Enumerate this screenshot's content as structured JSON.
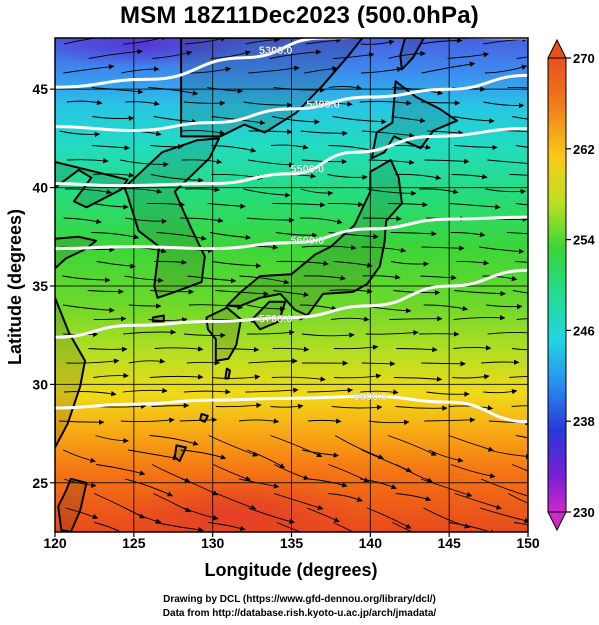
{
  "title": "MSM 18Z11Dec2023 (500.0hPa)",
  "map": {
    "xlabel": "Longitude (degrees)",
    "ylabel": "Latitude  (degrees)",
    "lon_range": [
      120,
      150
    ],
    "lat_range": [
      22.5,
      47.6
    ],
    "lon_ticks": [
      "120",
      "125",
      "130",
      "135",
      "140",
      "145",
      "150"
    ],
    "lat_ticks": [
      "25",
      "30",
      "35",
      "40",
      "45"
    ],
    "lon_tick_values": [
      120,
      125,
      130,
      135,
      140,
      145,
      150
    ],
    "lat_tick_values": [
      25,
      30,
      35,
      40,
      45
    ]
  },
  "colorbar": {
    "min": 230,
    "max": 270,
    "labels": [
      "270",
      "262",
      "254",
      "246",
      "238",
      "230"
    ],
    "label_values": [
      270,
      262,
      254,
      246,
      238,
      230
    ]
  },
  "contours": [
    {
      "label": "5300.0",
      "points": [
        [
          120,
          45.1
        ],
        [
          126,
          45.5
        ],
        [
          132,
          46.6
        ],
        [
          137,
          47.6
        ],
        [
          142,
          47.7
        ],
        [
          150,
          47.6
        ]
      ]
    },
    {
      "label": "5400.0",
      "points": [
        [
          120,
          43.1
        ],
        [
          125,
          42.9
        ],
        [
          130,
          43.3
        ],
        [
          135,
          44.0
        ],
        [
          140,
          44.6
        ],
        [
          145,
          45.0
        ],
        [
          150,
          45.7
        ]
      ]
    },
    {
      "label": "5500.0",
      "points": [
        [
          120,
          40.2
        ],
        [
          124,
          40.1
        ],
        [
          130,
          40.2
        ],
        [
          135,
          40.7
        ],
        [
          139,
          41.8
        ],
        [
          144,
          42.6
        ],
        [
          150,
          43.0
        ]
      ]
    },
    {
      "label": "5600.0",
      "points": [
        [
          120,
          36.9
        ],
        [
          125,
          37.0
        ],
        [
          130,
          36.9
        ],
        [
          135,
          37.2
        ],
        [
          140,
          37.9
        ],
        [
          145,
          38.4
        ],
        [
          150,
          38.5
        ]
      ]
    },
    {
      "label": "5700.0",
      "points": [
        [
          120,
          32.4
        ],
        [
          125,
          33.0
        ],
        [
          130,
          33.2
        ],
        [
          135,
          33.4
        ],
        [
          140,
          34.0
        ],
        [
          145,
          35.0
        ],
        [
          150,
          35.8
        ]
      ]
    },
    {
      "label": "5800.0",
      "points": [
        [
          120,
          28.8
        ],
        [
          125,
          29.0
        ],
        [
          130,
          29.2
        ],
        [
          135,
          29.3
        ],
        [
          140,
          29.4
        ],
        [
          145,
          29.1
        ],
        [
          150,
          28.1
        ]
      ]
    }
  ],
  "footer": {
    "line1": "Drawing by DCL (https://www.gfd-dennou.org/library/dcl/)",
    "line2": "Data from http://database.rish.kyoto-u.ac.jp/arch/jmadata/"
  },
  "colors": {
    "frame": "#000000",
    "contour": "#ffffff",
    "streamline": "#000000",
    "coastline": "#000000"
  }
}
